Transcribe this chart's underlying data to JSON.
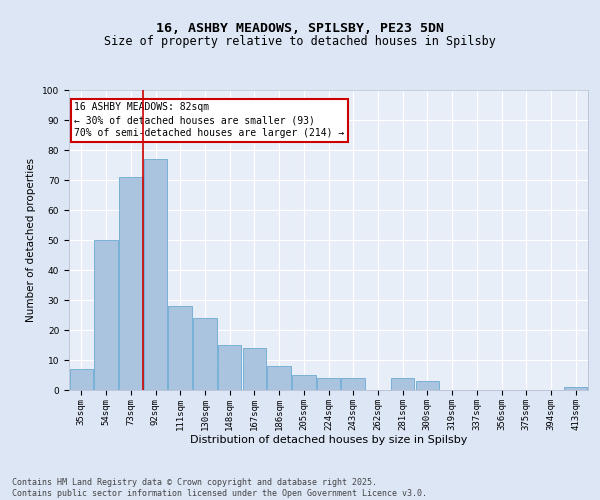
{
  "title": "16, ASHBY MEADOWS, SPILSBY, PE23 5DN",
  "subtitle": "Size of property relative to detached houses in Spilsby",
  "xlabel": "Distribution of detached houses by size in Spilsby",
  "ylabel": "Number of detached properties",
  "categories": [
    "35sqm",
    "54sqm",
    "73sqm",
    "92sqm",
    "111sqm",
    "130sqm",
    "148sqm",
    "167sqm",
    "186sqm",
    "205sqm",
    "224sqm",
    "243sqm",
    "262sqm",
    "281sqm",
    "300sqm",
    "319sqm",
    "337sqm",
    "356sqm",
    "375sqm",
    "394sqm",
    "413sqm"
  ],
  "values": [
    7,
    50,
    71,
    77,
    28,
    24,
    15,
    14,
    8,
    5,
    4,
    4,
    0,
    4,
    3,
    0,
    0,
    0,
    0,
    0,
    1
  ],
  "bar_color": "#aac4e0",
  "bar_edge_color": "#6aaad4",
  "vline_x_index": 2.5,
  "vline_color": "#cc0000",
  "annotation_text": "16 ASHBY MEADOWS: 82sqm\n← 30% of detached houses are smaller (93)\n70% of semi-detached houses are larger (214) →",
  "annotation_box_color": "#cc0000",
  "background_color": "#dce6f5",
  "plot_bg_color": "#e8eef8",
  "ylim": [
    0,
    100
  ],
  "yticks": [
    0,
    10,
    20,
    30,
    40,
    50,
    60,
    70,
    80,
    90,
    100
  ],
  "footer_text": "Contains HM Land Registry data © Crown copyright and database right 2025.\nContains public sector information licensed under the Open Government Licence v3.0.",
  "title_fontsize": 9.5,
  "subtitle_fontsize": 8.5,
  "xlabel_fontsize": 8,
  "ylabel_fontsize": 7.5,
  "tick_fontsize": 6.5,
  "annotation_fontsize": 7,
  "footer_fontsize": 6
}
